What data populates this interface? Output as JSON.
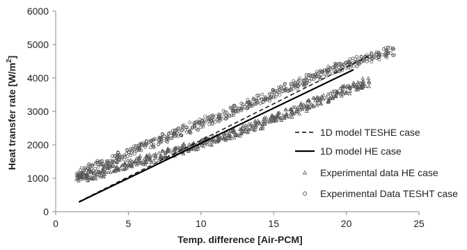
{
  "chart_data": {
    "type": "scatter",
    "title": "",
    "xlabel": "Temp. difference [Air-PCM]",
    "ylabel": "Heat transfer rate [W/m",
    "ylabel_sup": "2",
    "ylabel_end": "]",
    "xlim": [
      0,
      25
    ],
    "ylim": [
      0,
      6000
    ],
    "x_ticks": [
      0,
      5,
      10,
      15,
      20,
      25
    ],
    "y_ticks": [
      0,
      1000,
      2000,
      3000,
      4000,
      5000,
      6000
    ],
    "grid": false,
    "legend_position": "lower-right",
    "series": [
      {
        "name": "1D model TESHE case",
        "kind": "dashed-line",
        "color": "#000000",
        "x": [
          1.6,
          21.5
        ],
        "y": [
          300,
          4650
        ]
      },
      {
        "name": "1D model HE case",
        "kind": "solid-line",
        "color": "#000000",
        "x": [
          1.6,
          20.5
        ],
        "y": [
          290,
          4250
        ]
      },
      {
        "name": "Experimental data HE case",
        "kind": "triangle-markers",
        "color": "#555555",
        "x": [
          1.7,
          2.0,
          2.5,
          3.0,
          3.5,
          4.0,
          4.5,
          5.0,
          5.5,
          6.0,
          6.5,
          7.0,
          7.5,
          8.0,
          8.5,
          9.0,
          9.5,
          10.0,
          10.5,
          11.0,
          11.5,
          12.0,
          12.5,
          13.0,
          13.5,
          14.0,
          14.5,
          15.0,
          15.5,
          16.0,
          16.5,
          17.0,
          17.5,
          18.0,
          18.5,
          19.0,
          19.5,
          20.0,
          20.5,
          21.0,
          21.3
        ],
        "y": [
          1020,
          1050,
          1100,
          1150,
          1220,
          1290,
          1360,
          1420,
          1480,
          1540,
          1600,
          1660,
          1720,
          1780,
          1850,
          1910,
          1980,
          2040,
          2110,
          2170,
          2240,
          2310,
          2380,
          2450,
          2530,
          2610,
          2690,
          2770,
          2860,
          2950,
          3040,
          3130,
          3220,
          3310,
          3400,
          3490,
          3570,
          3650,
          3730,
          3800,
          3870
        ]
      },
      {
        "name": "Experimental Data TESHT case",
        "kind": "circle-markers",
        "color": "#555555",
        "x": [
          1.7,
          2.0,
          2.5,
          3.0,
          3.5,
          4.0,
          4.5,
          5.0,
          5.5,
          6.0,
          6.5,
          7.0,
          7.5,
          8.0,
          8.5,
          9.0,
          9.5,
          10.0,
          10.5,
          11.0,
          11.5,
          12.0,
          12.5,
          13.0,
          13.5,
          14.0,
          14.5,
          15.0,
          15.5,
          16.0,
          16.5,
          17.0,
          17.5,
          18.0,
          18.5,
          19.0,
          19.5,
          20.0,
          20.5,
          21.0,
          21.5,
          22.0,
          22.5,
          23.0
        ],
        "y": [
          1100,
          1200,
          1300,
          1400,
          1490,
          1580,
          1670,
          1760,
          1850,
          1940,
          2030,
          2120,
          2210,
          2300,
          2390,
          2480,
          2560,
          2640,
          2730,
          2810,
          2900,
          2990,
          3080,
          3170,
          3260,
          3350,
          3440,
          3530,
          3620,
          3710,
          3800,
          3890,
          3980,
          4070,
          4150,
          4230,
          4310,
          4390,
          4460,
          4530,
          4600,
          4670,
          4740,
          4800
        ]
      }
    ]
  }
}
